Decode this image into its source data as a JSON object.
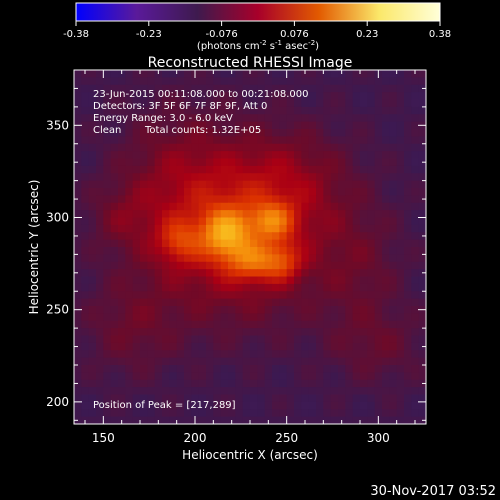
{
  "chart_data": {
    "type": "heatmap",
    "title": "Reconstructed RHESSI Image",
    "xlabel": "Heliocentric X (arcsec)",
    "ylabel": "Heliocentric Y (arcsec)",
    "xlim": [
      134,
      326
    ],
    "ylim": [
      188,
      380
    ],
    "x_ticks": [
      150,
      200,
      250,
      300
    ],
    "y_ticks": [
      200,
      250,
      300,
      350
    ],
    "colorbar": {
      "min": -0.38,
      "max": 0.38,
      "ticks": [
        "-0.38",
        "-0.23",
        "-0.076",
        "0.076",
        "0.23",
        "0.38"
      ],
      "unit_label": "(photons cm",
      "unit_exp1": "-2",
      "unit_mid": " s",
      "unit_exp2": "-1",
      "unit_mid2": " asec",
      "unit_exp3": "-2",
      "unit_end": ")",
      "colors": [
        "#0000ff",
        "#5a1a9a",
        "#3e1a4e",
        "#a8002a",
        "#e25a00",
        "#fbe86a",
        "#ffffd8"
      ]
    },
    "annotations": [
      "23-Jun-2015 00:11:08.000 to 00:21:08.000",
      "Detectors: 3F 5F 6F 7F 8F 9F, Att 0",
      "Energy Range: 3.0 - 6.0 keV",
      "Clean",
      "Total counts: 1.32E+05"
    ],
    "peak_label": "Position of Peak = [217,289]",
    "peak": [
      217,
      289
    ],
    "sources": [
      {
        "x": 217,
        "y": 291,
        "sx": 9,
        "sy": 9,
        "amp": 0.14
      },
      {
        "x": 242,
        "y": 298,
        "sx": 8,
        "sy": 7,
        "amp": 0.1
      },
      {
        "x": 232,
        "y": 276,
        "sx": 10,
        "sy": 7,
        "amp": 0.09
      },
      {
        "x": 248,
        "y": 276,
        "sx": 7,
        "sy": 7,
        "amp": 0.07
      },
      {
        "x": 191,
        "y": 287,
        "sx": 8,
        "sy": 8,
        "amp": 0.07
      },
      {
        "x": 222,
        "y": 290,
        "sx": 34,
        "sy": 30,
        "amp": 0.1
      },
      {
        "x": 250,
        "y": 320,
        "sx": 24,
        "sy": 20,
        "amp": 0.045
      },
      {
        "x": 190,
        "y": 325,
        "sx": 22,
        "sy": 26,
        "amp": 0.04
      },
      {
        "x": 165,
        "y": 240,
        "sx": 18,
        "sy": 18,
        "amp": 0.035
      },
      {
        "x": 290,
        "y": 272,
        "sx": 16,
        "sy": 24,
        "amp": 0.03
      },
      {
        "x": 300,
        "y": 230,
        "sx": 18,
        "sy": 14,
        "amp": 0.03
      },
      {
        "x": 160,
        "y": 300,
        "sx": 12,
        "sy": 12,
        "amp": 0.03
      }
    ]
  },
  "footer_date": "30-Nov-2017 03:52"
}
